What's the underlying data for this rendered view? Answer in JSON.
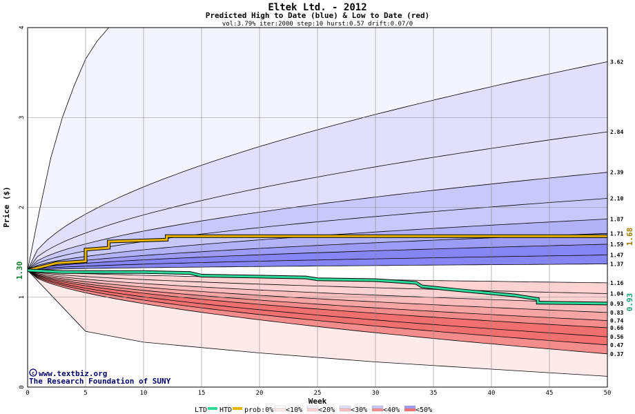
{
  "chart_data": {
    "type": "area",
    "title": "Eltek Ltd. - 2012",
    "subtitle": "Predicted High to Date (blue) &  Low to Date (red)",
    "params": "vol:3.79% iter:2000 step:10 hurst:0.57 drift:0.07/0",
    "xlabel": "Week",
    "ylabel": "Price ($)",
    "xlim": [
      0,
      50
    ],
    "ylim": [
      0,
      4
    ],
    "x_ticks": [
      0,
      5,
      10,
      15,
      20,
      25,
      30,
      35,
      40,
      45,
      50
    ],
    "y_ticks": [
      0,
      1,
      2,
      3,
      4
    ],
    "x_tick_labels": [
      "0",
      "5",
      "10",
      "15",
      "20",
      "25",
      "30",
      "35",
      "40",
      "45",
      "50"
    ],
    "y_tick_labels": [
      "0",
      "1",
      "2",
      "3",
      "4"
    ],
    "start_price": 1.3,
    "start_price_label": "1.30",
    "grid": true,
    "upper_percentile_curves_at_week_50": [
      3.62,
      2.84,
      2.39,
      2.1,
      1.87,
      1.71,
      1.59,
      1.47,
      1.37
    ],
    "lower_percentile_curves_at_week_50": [
      1.16,
      1.04,
      0.93,
      0.83,
      0.74,
      0.66,
      0.56,
      0.47,
      0.37
    ],
    "outer_high_curve": {
      "x": [
        0,
        1,
        2,
        3,
        4,
        5,
        6,
        7
      ],
      "y": [
        1.3,
        1.95,
        2.55,
        3.0,
        3.35,
        3.65,
        3.85,
        4.0
      ]
    },
    "outer_low_curve": {
      "x": [
        0,
        5,
        10,
        20,
        30,
        40,
        50
      ],
      "y": [
        1.3,
        0.62,
        0.5,
        0.38,
        0.28,
        0.2,
        0.12
      ]
    },
    "right_labels": [
      "3.62",
      "2.84",
      "2.39",
      "2.10",
      "1.87",
      "1.71",
      "1.59",
      "1.47",
      "1.37",
      "1.16",
      "1.04",
      "0.93",
      "0.83",
      "0.74",
      "0.66",
      "0.56",
      "0.47",
      "0.37"
    ],
    "series": [
      {
        "name": "HTD",
        "color": "#e8b400",
        "x": [
          0,
          2.5,
          5,
          5,
          7,
          7,
          12,
          12,
          50
        ],
        "y": [
          1.3,
          1.38,
          1.4,
          1.53,
          1.55,
          1.62,
          1.64,
          1.68,
          1.68
        ],
        "last_value_label": "1.68"
      },
      {
        "name": "LTD",
        "color": "#2edb9a",
        "x": [
          0,
          3,
          10,
          14,
          15,
          24,
          25,
          30,
          33.5,
          34,
          37,
          42,
          44,
          44,
          50
        ],
        "y": [
          1.3,
          1.28,
          1.28,
          1.27,
          1.24,
          1.22,
          1.2,
          1.19,
          1.16,
          1.12,
          1.08,
          1.02,
          0.98,
          0.94,
          0.93
        ],
        "last_value_label": "0.93"
      }
    ]
  },
  "legend": {
    "ltd": "LTD",
    "htd": "HTD",
    "prob": "prob:0%",
    "buckets": [
      "<10%",
      "<20%",
      "<30%",
      "<40%",
      "<50%"
    ]
  },
  "credits": {
    "site": "www.textbiz.org",
    "org": "The Research Foundation of SUNY"
  },
  "colors": {
    "blue_bands": [
      "#f4f4ff",
      "#e0e0fc",
      "#c8c8fa",
      "#b2b2f8",
      "#9c9cf6",
      "#8585f3"
    ],
    "red_bands": [
      "#ffeaea",
      "#fcd2d2",
      "#fabcbc",
      "#f7a4a4",
      "#f48c8c",
      "#f07070"
    ]
  }
}
